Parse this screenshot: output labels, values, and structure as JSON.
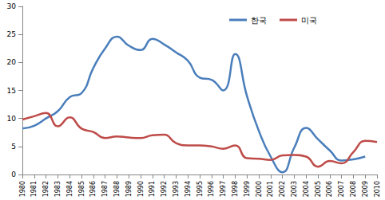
{
  "chart_data": {
    "type": "line",
    "categories": [
      "1980",
      "1981",
      "1982",
      "1983",
      "1984",
      "1985",
      "1986",
      "1987",
      "1988",
      "1989",
      "1990",
      "1991",
      "1992",
      "1993",
      "1994",
      "1995",
      "1996",
      "1997",
      "1998",
      "1999",
      "2000",
      "2001",
      "2002",
      "2003",
      "2004",
      "2005",
      "2006",
      "2007",
      "2008",
      "2009",
      "2010"
    ],
    "series": [
      {
        "name": "한국",
        "color": "#4a7ebb",
        "values": [
          8.2,
          8.7,
          10.0,
          11.3,
          13.8,
          14.5,
          19.0,
          22.5,
          24.6,
          23.0,
          22.2,
          24.2,
          23.2,
          21.8,
          20.3,
          17.3,
          16.9,
          15.0,
          21.5,
          14.0,
          7.8,
          3.2,
          0.4,
          4.8,
          8.3,
          6.3,
          4.3,
          2.5,
          2.7,
          3.2,
          null
        ]
      },
      {
        "name": "미국",
        "color": "#be4b48",
        "values": [
          9.8,
          10.4,
          11.0,
          8.6,
          10.2,
          8.2,
          7.6,
          6.5,
          6.8,
          6.6,
          6.5,
          7.0,
          7.1,
          5.6,
          5.2,
          5.2,
          5.0,
          4.6,
          5.2,
          2.9,
          2.8,
          2.6,
          3.4,
          3.5,
          3.2,
          1.4,
          2.4,
          2.0,
          4.0,
          6.0,
          5.8
        ]
      }
    ],
    "ylim": [
      0,
      30
    ],
    "yticks": [
      0,
      5,
      10,
      15,
      20,
      25,
      30
    ],
    "grid": false,
    "legend": "top-right"
  }
}
